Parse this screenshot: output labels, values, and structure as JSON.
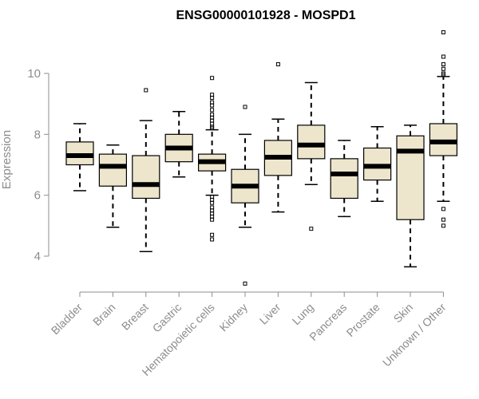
{
  "chart_data": {
    "type": "boxplot",
    "title": "ENSG00000101928 - MOSPD1",
    "xlabel": "",
    "ylabel": "Expression",
    "ylim": [
      2.9,
      11.6
    ],
    "yticks": [
      4,
      6,
      8,
      10
    ],
    "colors": {
      "box_fill": "#ede6cd",
      "axis": "#8c8c8c",
      "median": "#000000"
    },
    "categories": [
      "Bladder",
      "Brain",
      "Breast",
      "Gastric",
      "Hematopoietic cells",
      "Kidney",
      "Liver",
      "Lung",
      "Pancreas",
      "Prostate",
      "Skin",
      "Unknown / Other"
    ],
    "boxes": [
      {
        "category": "Bladder",
        "lower_whisker": 6.15,
        "q1": 7.0,
        "median": 7.3,
        "q3": 7.75,
        "upper_whisker": 8.35,
        "outliers": []
      },
      {
        "category": "Brain",
        "lower_whisker": 4.95,
        "q1": 6.3,
        "median": 6.95,
        "q3": 7.35,
        "upper_whisker": 7.65,
        "outliers": []
      },
      {
        "category": "Breast",
        "lower_whisker": 4.15,
        "q1": 5.9,
        "median": 6.35,
        "q3": 7.3,
        "upper_whisker": 8.45,
        "outliers": [
          9.45
        ]
      },
      {
        "category": "Gastric",
        "lower_whisker": 6.6,
        "q1": 7.1,
        "median": 7.55,
        "q3": 8.0,
        "upper_whisker": 8.75,
        "outliers": []
      },
      {
        "category": "Hematopoietic cells",
        "lower_whisker": 6.0,
        "q1": 6.8,
        "median": 7.1,
        "q3": 7.35,
        "upper_whisker": 8.15,
        "outliers": [
          9.85,
          9.3,
          9.2,
          9.05,
          8.95,
          8.8,
          8.65,
          8.55,
          8.45,
          8.35,
          8.25,
          8.2,
          5.95,
          5.85,
          5.75,
          5.6,
          5.5,
          5.4,
          5.3,
          5.2,
          4.7,
          4.55
        ]
      },
      {
        "category": "Kidney",
        "lower_whisker": 4.95,
        "q1": 5.75,
        "median": 6.3,
        "q3": 6.85,
        "upper_whisker": 8.0,
        "outliers": [
          8.9,
          3.1
        ]
      },
      {
        "category": "Liver",
        "lower_whisker": 5.45,
        "q1": 6.65,
        "median": 7.25,
        "q3": 7.8,
        "upper_whisker": 8.5,
        "outliers": [
          10.3
        ]
      },
      {
        "category": "Lung",
        "lower_whisker": 6.35,
        "q1": 7.2,
        "median": 7.65,
        "q3": 8.3,
        "upper_whisker": 9.7,
        "outliers": [
          4.9
        ]
      },
      {
        "category": "Pancreas",
        "lower_whisker": 5.3,
        "q1": 5.9,
        "median": 6.7,
        "q3": 7.2,
        "upper_whisker": 7.8,
        "outliers": []
      },
      {
        "category": "Prostate",
        "lower_whisker": 5.8,
        "q1": 6.5,
        "median": 6.95,
        "q3": 7.55,
        "upper_whisker": 8.25,
        "outliers": []
      },
      {
        "category": "Skin",
        "lower_whisker": 3.65,
        "q1": 5.2,
        "median": 7.45,
        "q3": 7.95,
        "upper_whisker": 8.3,
        "outliers": []
      },
      {
        "category": "Unknown / Other",
        "lower_whisker": 5.8,
        "q1": 7.3,
        "median": 7.75,
        "q3": 8.35,
        "upper_whisker": 9.9,
        "outliers": [
          11.35,
          10.55,
          10.3,
          10.15,
          10.0,
          9.95,
          5.55,
          5.2,
          5.0
        ]
      }
    ]
  }
}
